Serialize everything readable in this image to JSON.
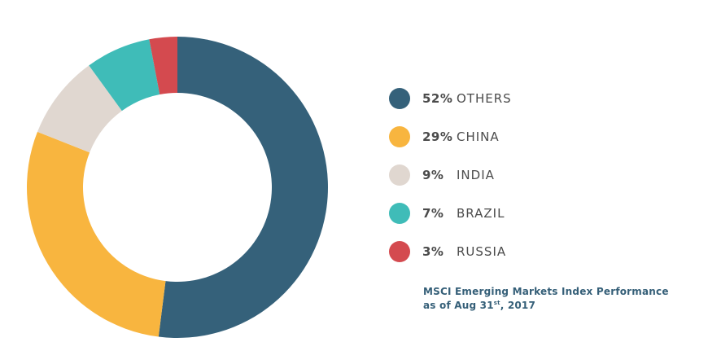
{
  "chart_data": {
    "type": "pie",
    "style": "donut",
    "slices": [
      {
        "label": "OTHERS",
        "value": 52,
        "value_label": "52%",
        "color": "#35617a"
      },
      {
        "label": "CHINA",
        "value": 29,
        "value_label": "29%",
        "color": "#f8b53f"
      },
      {
        "label": "INDIA",
        "value": 9,
        "value_label": "9%",
        "color": "#e0d7d0"
      },
      {
        "label": "BRAZIL",
        "value": 7,
        "value_label": "7%",
        "color": "#3fbcb8"
      },
      {
        "label": "RUSSIA",
        "value": 3,
        "value_label": "3%",
        "color": "#d44a4f"
      }
    ],
    "legend_placement": "right",
    "caption": {
      "line1": "MSCI Emerging Markets Index Performance",
      "line2_prefix": "as of Aug 31",
      "line2_sup": "st",
      "line2_suffix": ", 2017"
    }
  }
}
